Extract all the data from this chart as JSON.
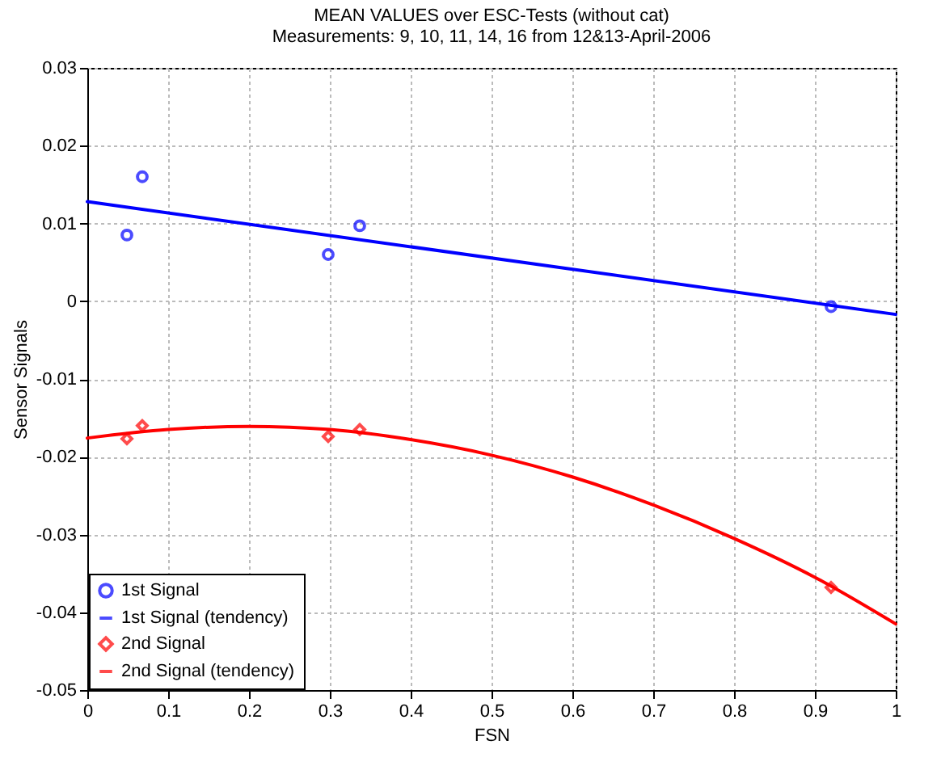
{
  "chart_data": {
    "type": "scatter",
    "title": "MEAN VALUES over ESC-Tests (without cat)",
    "subtitle": "Measurements: 9, 10, 11, 14, 16 from 12&13-April-2006",
    "xlabel": "FSN",
    "ylabel": "Sensor Signals",
    "xlim": [
      0,
      1
    ],
    "xticks": [
      0,
      0.1,
      0.2,
      0.3,
      0.4,
      0.5,
      0.6,
      0.7,
      0.8,
      0.9,
      1
    ],
    "ylim": [
      -0.05,
      0.03
    ],
    "yticks": [
      -0.05,
      -0.04,
      -0.03,
      -0.02,
      -0.01,
      0,
      0.01,
      0.02,
      0.03
    ],
    "grid": true,
    "legend": "bottom left",
    "series": [
      {
        "name": "1st Signal",
        "marker": "circle",
        "color": "#0000ff",
        "x": [
          0.049,
          0.068,
          0.298,
          0.337,
          0.92
        ],
        "values": [
          0.0085,
          0.016,
          0.006,
          0.0097,
          -0.0007
        ]
      },
      {
        "name": "1st Signal (tendency)",
        "type": "line",
        "line_style": "solid",
        "color": "#0000ff",
        "x": [
          0,
          1
        ],
        "values": [
          0.0128,
          -0.0017
        ]
      },
      {
        "name": "2nd Signal",
        "marker": "diamond",
        "color": "#ff0000",
        "x": [
          0.049,
          0.068,
          0.298,
          0.337,
          0.92
        ],
        "values": [
          -0.0177,
          -0.016,
          -0.0174,
          -0.0165,
          -0.0368
        ]
      },
      {
        "name": "2nd Signal (tendency)",
        "type": "line",
        "line_style": "solid",
        "color": "#ff0000",
        "x": [
          0,
          0.1,
          0.2,
          0.3,
          0.4,
          0.5,
          0.6,
          0.7,
          0.8,
          0.9,
          1
        ],
        "values": [
          -0.0176,
          -0.0165,
          -0.0161,
          -0.0165,
          -0.0178,
          -0.0198,
          -0.0226,
          -0.0262,
          -0.0305,
          -0.0355,
          -0.0415
        ]
      }
    ]
  }
}
